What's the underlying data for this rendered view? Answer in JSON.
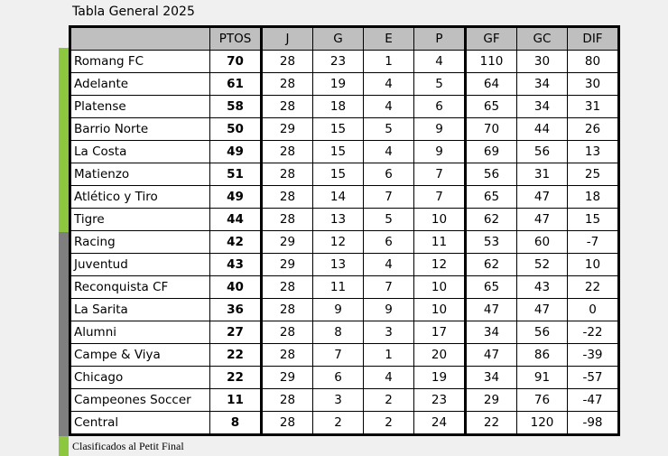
{
  "title": "Tabla General 2025",
  "colors": {
    "qualified": "#8dc63f",
    "other": "#7f7f7f",
    "header": "#bfbfbf"
  },
  "columns": [
    "",
    "PTOS",
    "J",
    "G",
    "E",
    "P",
    "GF",
    "GC",
    "DIF"
  ],
  "rows": [
    [
      "Romang FC",
      "70",
      "28",
      "23",
      "1",
      "4",
      "110",
      "30",
      "80"
    ],
    [
      "Adelante",
      "61",
      "28",
      "19",
      "4",
      "5",
      "64",
      "34",
      "30"
    ],
    [
      "Platense",
      "58",
      "28",
      "18",
      "4",
      "6",
      "65",
      "34",
      "31"
    ],
    [
      "Barrio Norte",
      "50",
      "29",
      "15",
      "5",
      "9",
      "70",
      "44",
      "26"
    ],
    [
      "La  Costa",
      "49",
      "28",
      "15",
      "4",
      "9",
      "69",
      "56",
      "13"
    ],
    [
      "Matienzo",
      "51",
      "28",
      "15",
      "6",
      "7",
      "56",
      "31",
      "25"
    ],
    [
      "Atlético y Tiro",
      "49",
      "28",
      "14",
      "7",
      "7",
      "65",
      "47",
      "18"
    ],
    [
      "Tigre",
      "44",
      "28",
      "13",
      "5",
      "10",
      "62",
      "47",
      "15"
    ],
    [
      "Racing",
      "42",
      "29",
      "12",
      "6",
      "11",
      "53",
      "60",
      "-7"
    ],
    [
      "Juventud",
      "43",
      "29",
      "13",
      "4",
      "12",
      "62",
      "52",
      "10"
    ],
    [
      "Reconquista CF",
      "40",
      "28",
      "11",
      "7",
      "10",
      "65",
      "43",
      "22"
    ],
    [
      "La Sarita",
      "36",
      "28",
      "9",
      "9",
      "10",
      "47",
      "47",
      "0"
    ],
    [
      "Alumni",
      "27",
      "28",
      "8",
      "3",
      "17",
      "34",
      "56",
      "-22"
    ],
    [
      "Campe & Viya",
      "22",
      "28",
      "7",
      "1",
      "20",
      "47",
      "86",
      "-39"
    ],
    [
      "Chicago",
      "22",
      "29",
      "6",
      "4",
      "19",
      "34",
      "91",
      "-57"
    ],
    [
      "Campeones Soccer",
      "11",
      "28",
      "3",
      "2",
      "23",
      "29",
      "76",
      "-47"
    ],
    [
      "Central",
      "8",
      "28",
      "2",
      "2",
      "24",
      "22",
      "120",
      "-98"
    ]
  ],
  "legend": "Clasificados al Petit Final"
}
